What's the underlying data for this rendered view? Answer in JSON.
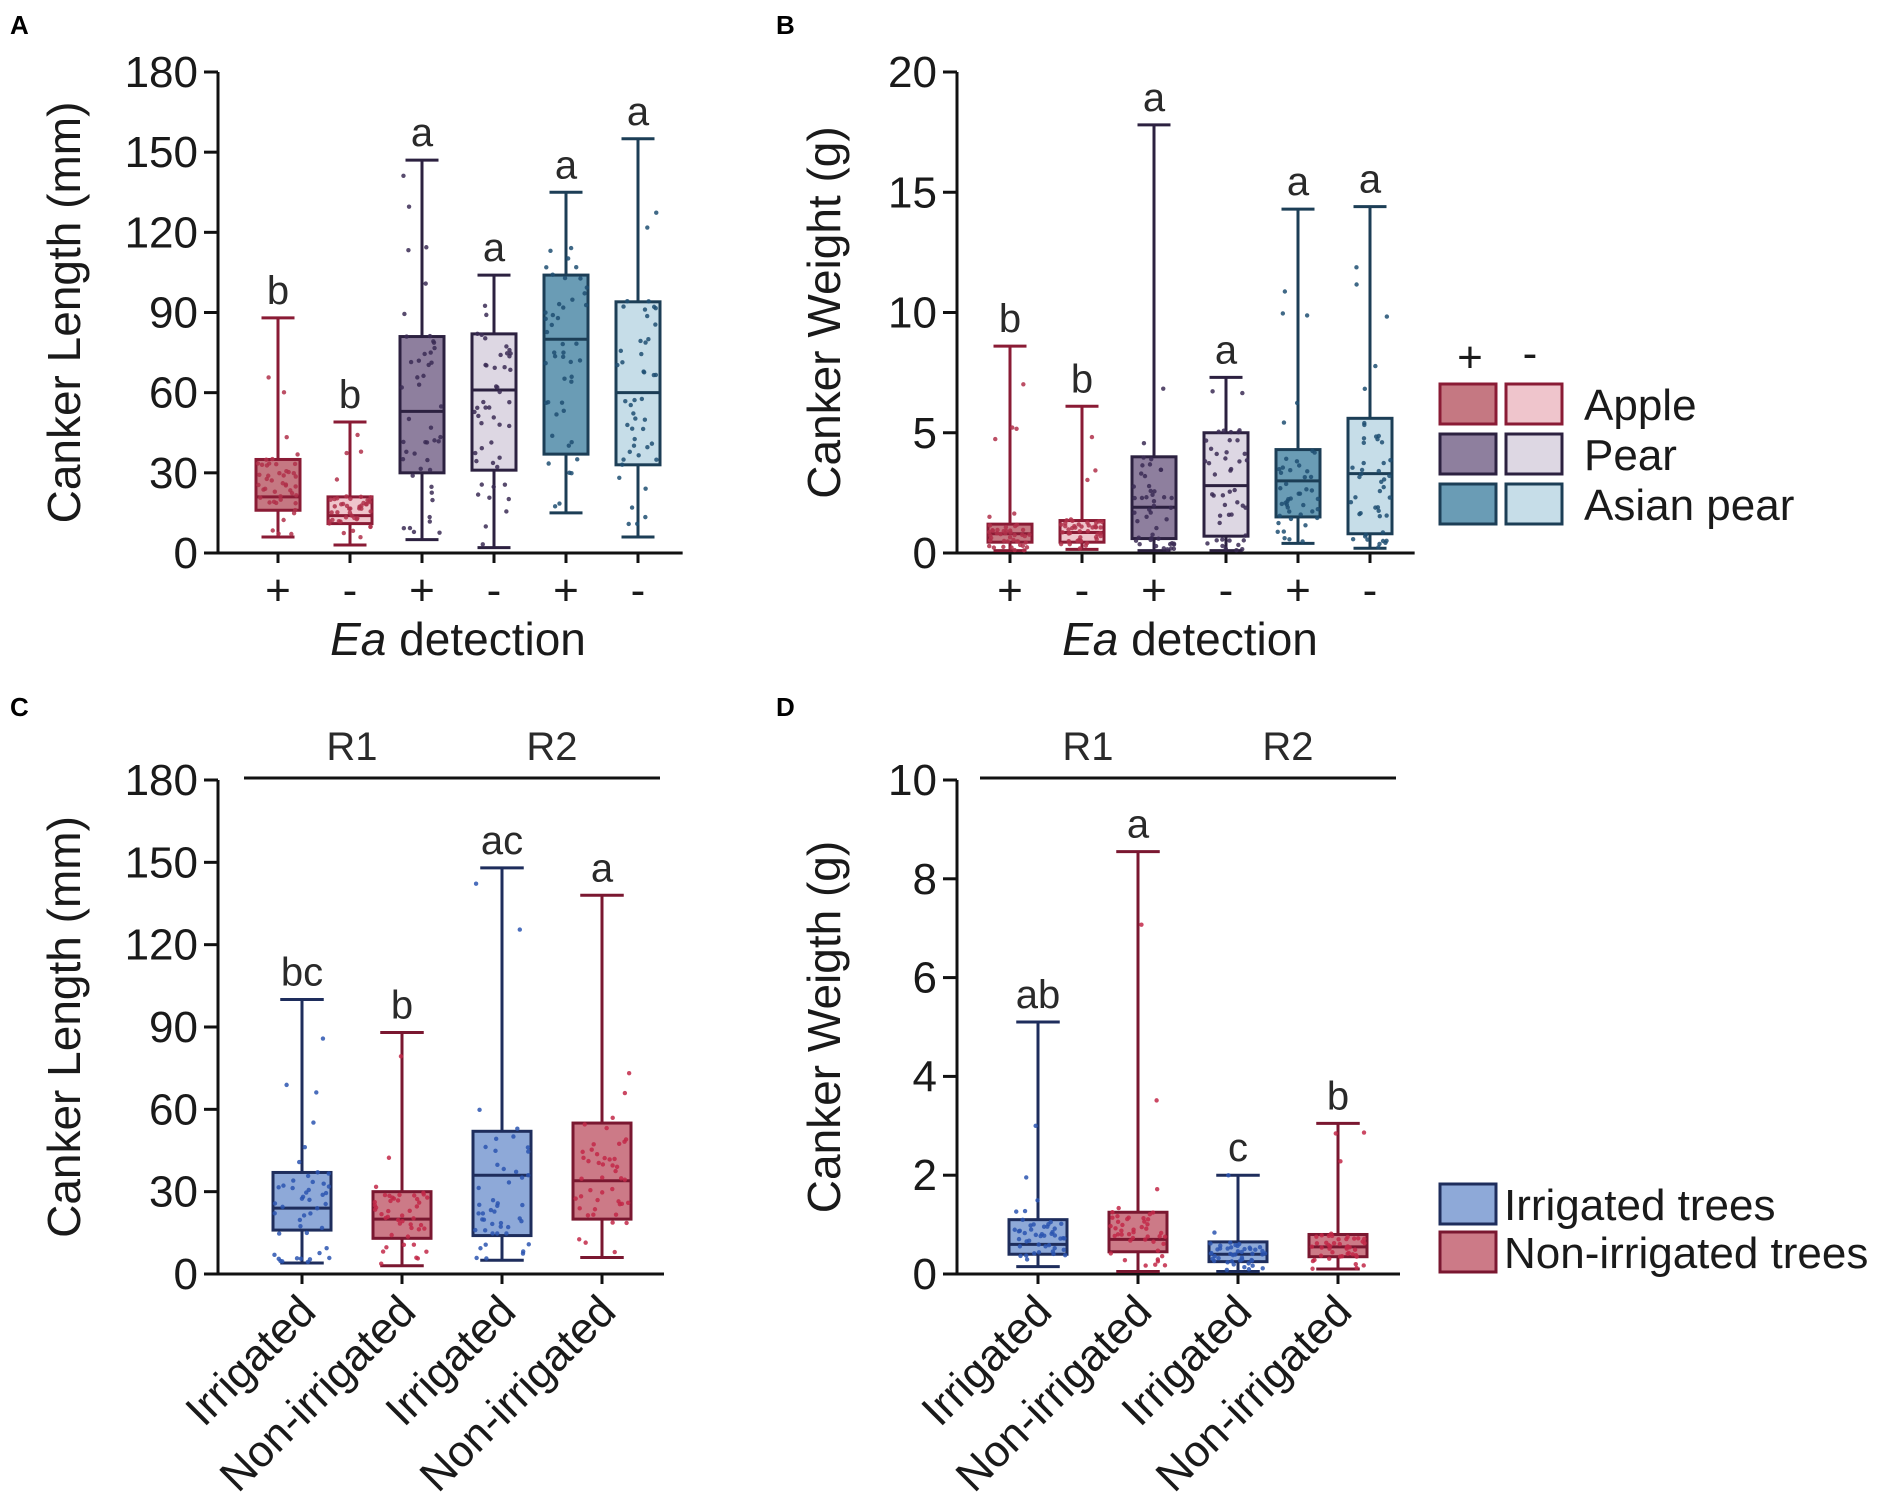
{
  "figure": {
    "legend_ab": {
      "header_pos": "+",
      "header_neg": "-",
      "items": [
        {
          "label": "Apple",
          "pos_color": "#c57882",
          "neg_color": "#efc5cc",
          "edge": "#8a1b35"
        },
        {
          "label": "Pear",
          "pos_color": "#8e7f9e",
          "neg_color": "#ddd7e3",
          "edge": "#2c2140"
        },
        {
          "label": "Asian pear",
          "pos_color": "#6a9cb5",
          "neg_color": "#c6dde8",
          "edge": "#1c3e56"
        }
      ]
    },
    "legend_cd": {
      "items": [
        {
          "label": "Irrigated trees",
          "color": "#8ea9d8",
          "edge": "#1e2d5c"
        },
        {
          "label": "Non-irrigated trees",
          "color": "#cc7a87",
          "edge": "#7a1730"
        }
      ]
    }
  },
  "chart_data": [
    {
      "panel": "A",
      "type": "box",
      "ylabel": "Canker Length (mm)",
      "xlabel_italic": "Ea",
      "xlabel_rest": " detection",
      "ylim": [
        0,
        180
      ],
      "yticks": [
        0,
        30,
        60,
        90,
        120,
        150,
        180
      ],
      "categories": [
        "+",
        "-",
        "+",
        "-",
        "+",
        "-"
      ],
      "boxes": [
        {
          "min": 6,
          "q1": 16,
          "median": 21,
          "q3": 35,
          "max": 88,
          "sig": "b",
          "fill": "#c57882",
          "edge": "#8a1b35",
          "dot": "#b0304a"
        },
        {
          "min": 3,
          "q1": 11,
          "median": 14,
          "q3": 21,
          "max": 49,
          "sig": "b",
          "fill": "#efc5cc",
          "edge": "#8a1b35",
          "dot": "#b0304a"
        },
        {
          "min": 5,
          "q1": 30,
          "median": 53,
          "q3": 81,
          "max": 147,
          "sig": "a",
          "fill": "#8e7f9e",
          "edge": "#2c2140",
          "dot": "#3b2c55"
        },
        {
          "min": 2,
          "q1": 31,
          "median": 61,
          "q3": 82,
          "max": 104,
          "sig": "a",
          "fill": "#ddd7e3",
          "edge": "#2c2140",
          "dot": "#3b2c55"
        },
        {
          "min": 15,
          "q1": 37,
          "median": 80,
          "q3": 104,
          "max": 135,
          "sig": "a",
          "fill": "#6a9cb5",
          "edge": "#1c3e56",
          "dot": "#1e4f72"
        },
        {
          "min": 6,
          "q1": 33,
          "median": 60,
          "q3": 94,
          "max": 155,
          "sig": "a",
          "fill": "#c6dde8",
          "edge": "#1c3e56",
          "dot": "#1e4f72"
        }
      ]
    },
    {
      "panel": "B",
      "type": "box",
      "ylabel": "Canker Weight (g)",
      "xlabel_italic": "Ea",
      "xlabel_rest": " detection",
      "ylim": [
        0,
        20
      ],
      "yticks": [
        0,
        5,
        10,
        15,
        20
      ],
      "categories": [
        "+",
        "-",
        "+",
        "-",
        "+",
        "-"
      ],
      "boxes": [
        {
          "min": 0.1,
          "q1": 0.45,
          "median": 0.8,
          "q3": 1.2,
          "max": 8.6,
          "sig": "b",
          "fill": "#c57882",
          "edge": "#8a1b35",
          "dot": "#b0304a"
        },
        {
          "min": 0.15,
          "q1": 0.45,
          "median": 0.85,
          "q3": 1.35,
          "max": 6.1,
          "sig": "b",
          "fill": "#efc5cc",
          "edge": "#8a1b35",
          "dot": "#b0304a"
        },
        {
          "min": 0.1,
          "q1": 0.6,
          "median": 1.9,
          "q3": 4.0,
          "max": 17.8,
          "sig": "a",
          "fill": "#8e7f9e",
          "edge": "#2c2140",
          "dot": "#3b2c55"
        },
        {
          "min": 0.1,
          "q1": 0.7,
          "median": 2.8,
          "q3": 5.0,
          "max": 7.3,
          "sig": "a",
          "fill": "#ddd7e3",
          "edge": "#2c2140",
          "dot": "#3b2c55"
        },
        {
          "min": 0.4,
          "q1": 1.5,
          "median": 3.0,
          "q3": 4.3,
          "max": 14.3,
          "sig": "a",
          "fill": "#6a9cb5",
          "edge": "#1c3e56",
          "dot": "#1e4f72"
        },
        {
          "min": 0.2,
          "q1": 0.8,
          "median": 3.3,
          "q3": 5.6,
          "max": 14.4,
          "sig": "a",
          "fill": "#c6dde8",
          "edge": "#1c3e56",
          "dot": "#1e4f72"
        }
      ]
    },
    {
      "panel": "C",
      "type": "box",
      "ylabel": "Canker Length (mm)",
      "ylim": [
        0,
        180
      ],
      "yticks": [
        0,
        30,
        60,
        90,
        120,
        150,
        180
      ],
      "categories": [
        "Irrigated",
        "Non-irrigated",
        "Irrigated",
        "Non-irrigated"
      ],
      "groups": [
        {
          "label": "R1",
          "from": 0,
          "to": 1
        },
        {
          "label": "R2",
          "from": 2,
          "to": 3
        }
      ],
      "boxes": [
        {
          "min": 4,
          "q1": 16,
          "median": 24,
          "q3": 37,
          "max": 100,
          "sig": "bc",
          "fill": "#8ea9d8",
          "edge": "#1e2d5c",
          "dot": "#2b55b0"
        },
        {
          "min": 3,
          "q1": 13,
          "median": 20,
          "q3": 30,
          "max": 88,
          "sig": "b",
          "fill": "#cc7a87",
          "edge": "#7a1730",
          "dot": "#c22848"
        },
        {
          "min": 5,
          "q1": 14,
          "median": 36,
          "q3": 52,
          "max": 148,
          "sig": "ac",
          "fill": "#8ea9d8",
          "edge": "#1e2d5c",
          "dot": "#2b55b0"
        },
        {
          "min": 6,
          "q1": 20,
          "median": 34,
          "q3": 55,
          "max": 138,
          "sig": "a",
          "fill": "#cc7a87",
          "edge": "#7a1730",
          "dot": "#c22848"
        }
      ]
    },
    {
      "panel": "D",
      "type": "box",
      "ylabel": "Canker Weigth (g)",
      "ylim": [
        0,
        10
      ],
      "yticks": [
        0,
        2,
        4,
        6,
        8,
        10
      ],
      "categories": [
        "Irrigated",
        "Non-irrigated",
        "Irrigated",
        "Non-irrigated"
      ],
      "groups": [
        {
          "label": "R1",
          "from": 0,
          "to": 1
        },
        {
          "label": "R2",
          "from": 2,
          "to": 3
        }
      ],
      "boxes": [
        {
          "min": 0.15,
          "q1": 0.4,
          "median": 0.6,
          "q3": 1.1,
          "max": 5.1,
          "sig": "ab",
          "fill": "#8ea9d8",
          "edge": "#1e2d5c",
          "dot": "#2b55b0"
        },
        {
          "min": 0.05,
          "q1": 0.45,
          "median": 0.7,
          "q3": 1.25,
          "max": 8.55,
          "sig": "a",
          "fill": "#cc7a87",
          "edge": "#7a1730",
          "dot": "#c22848"
        },
        {
          "min": 0.05,
          "q1": 0.25,
          "median": 0.4,
          "q3": 0.65,
          "max": 2.0,
          "sig": "c",
          "fill": "#8ea9d8",
          "edge": "#1e2d5c",
          "dot": "#2b55b0"
        },
        {
          "min": 0.1,
          "q1": 0.35,
          "median": 0.55,
          "q3": 0.8,
          "max": 3.05,
          "sig": "b",
          "fill": "#cc7a87",
          "edge": "#7a1730",
          "dot": "#c22848"
        }
      ]
    }
  ]
}
